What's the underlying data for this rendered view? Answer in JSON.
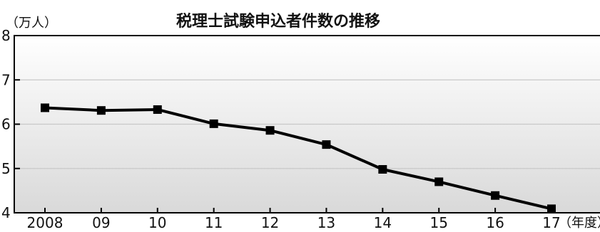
{
  "chart_data": {
    "type": "line",
    "title": "税理士試験申込者件数の推移",
    "ylabel": "（万人）",
    "xlabel": "（年度）",
    "categories": [
      "2008",
      "09",
      "10",
      "11",
      "12",
      "13",
      "14",
      "15",
      "16",
      "17"
    ],
    "series": [
      {
        "values": [
          6.37,
          6.31,
          6.33,
          6.01,
          5.86,
          5.54,
          4.98,
          4.7,
          4.39,
          4.09
        ]
      }
    ],
    "ylim": [
      4,
      8
    ],
    "yticks": [
      "4",
      "5",
      "6",
      "7",
      "8"
    ],
    "grid": true,
    "colors": {
      "line": "#000000",
      "marker": "#000000",
      "grid": "#c8c8c8"
    }
  }
}
